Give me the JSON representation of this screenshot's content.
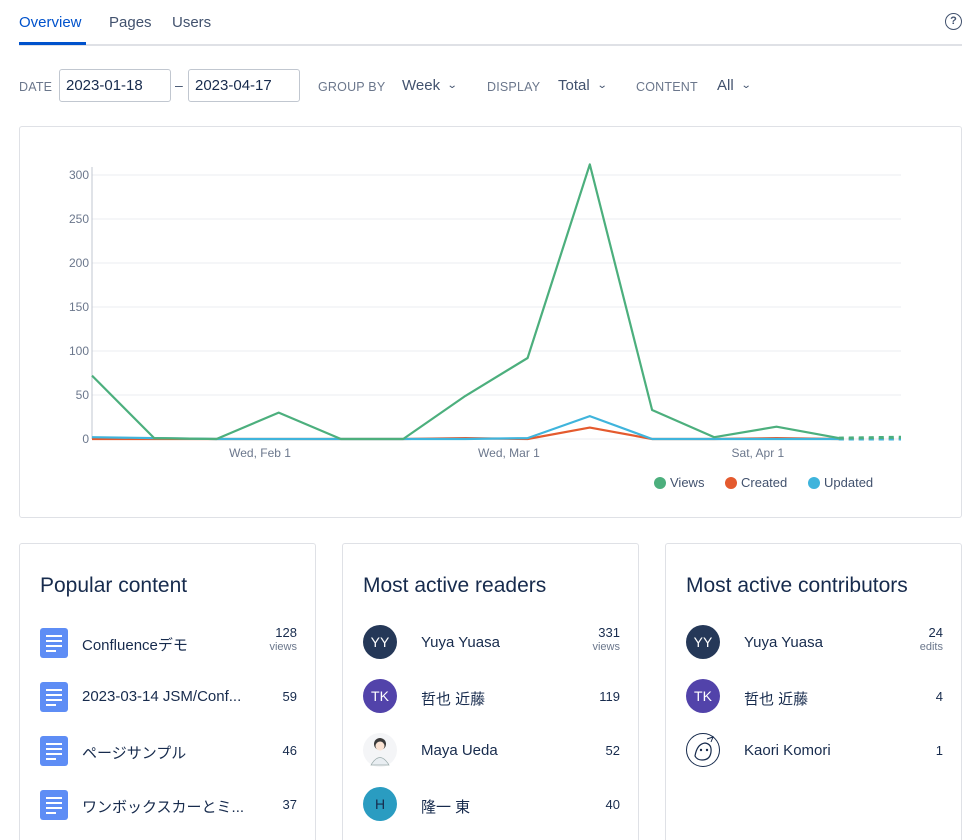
{
  "tabs": [
    {
      "label": "Overview",
      "active": true
    },
    {
      "label": "Pages",
      "active": false
    },
    {
      "label": "Users",
      "active": false
    }
  ],
  "help_icon": "question-circle-icon",
  "filters": {
    "date_label": "DATE",
    "date_from": "2023-01-18",
    "date_separator": "–",
    "date_to": "2023-04-17",
    "group_by_label": "GROUP BY",
    "group_by_value": "Week",
    "display_label": "DISPLAY",
    "display_value": "Total",
    "content_label": "CONTENT",
    "content_value": "All"
  },
  "chart_data": {
    "type": "line",
    "y_ticks": [
      0,
      50,
      100,
      150,
      200,
      250,
      300
    ],
    "ylim": [
      0,
      300
    ],
    "grid": true,
    "x_tick_labels": [
      "Wed, Feb 1",
      "Wed, Mar 1",
      "Sat, Apr 1"
    ],
    "x_tick_positions": [
      2.7,
      6.7,
      10.7
    ],
    "series": [
      {
        "name": "Views",
        "color": "#4caf7d",
        "values": [
          72,
          1,
          0,
          30,
          0,
          0,
          49,
          92,
          312,
          33,
          2,
          14,
          1,
          2
        ]
      },
      {
        "name": "Created",
        "color": "#e45a2e",
        "values": [
          0,
          0,
          0,
          0,
          0,
          0,
          1,
          0,
          13,
          0,
          0,
          1,
          0,
          0
        ]
      },
      {
        "name": "Updated",
        "color": "#3fb4dc",
        "values": [
          2,
          1,
          0,
          0,
          0,
          0,
          0,
          1,
          26,
          0,
          0,
          0,
          0,
          0
        ]
      }
    ],
    "dashed_last_segment": true,
    "legend_position": "bottom-right"
  },
  "popular_content": {
    "title": "Popular content",
    "unit": "views",
    "items": [
      {
        "label": "Confluenceデモ",
        "count": "128",
        "show_unit": true
      },
      {
        "label": "2023-03-14 JSM/Conf...",
        "count": "59",
        "show_unit": false
      },
      {
        "label": "ページサンプル",
        "count": "46",
        "show_unit": false
      },
      {
        "label": "ワンボックスカーとミ...",
        "count": "37",
        "show_unit": false
      }
    ]
  },
  "active_readers": {
    "title": "Most active readers",
    "unit": "views",
    "items": [
      {
        "initials": "YY",
        "name": "Yuya Yuasa",
        "count": "331",
        "show_unit": true
      },
      {
        "initials": "TK",
        "name": "哲也 近藤",
        "count": "119",
        "show_unit": false
      },
      {
        "initials": "",
        "name": "Maya Ueda",
        "count": "52",
        "show_unit": false
      },
      {
        "initials": "H",
        "name": "隆一 東",
        "count": "40",
        "show_unit": false
      }
    ]
  },
  "active_contributors": {
    "title": "Most active contributors",
    "unit": "edits",
    "items": [
      {
        "initials": "YY",
        "name": "Yuya Yuasa",
        "count": "24",
        "show_unit": true
      },
      {
        "initials": "TK",
        "name": "哲也 近藤",
        "count": "4",
        "show_unit": false
      },
      {
        "initials": "",
        "name": "Kaori Komori",
        "count": "1",
        "show_unit": false
      }
    ]
  }
}
